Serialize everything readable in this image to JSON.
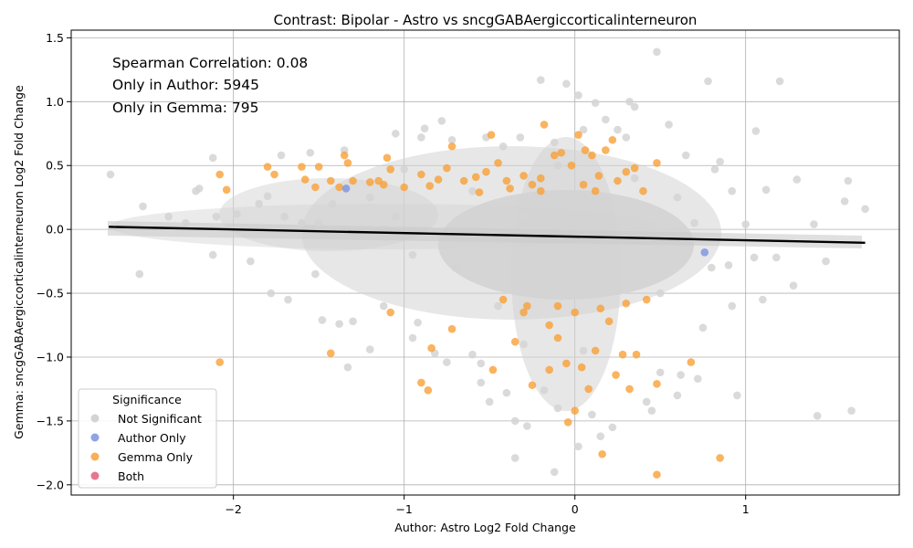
{
  "chart_data": {
    "type": "scatter",
    "title": "Contrast: Bipolar - Astro vs sncgGABAergiccorticalinterneuron",
    "xlabel": "Author: Astro Log2 Fold Change",
    "ylabel": "Gemma: sncgGABAergiccorticalinterneuron Log2 Fold Change",
    "xlim": [
      -2.95,
      1.9
    ],
    "ylim": [
      -2.08,
      1.56
    ],
    "xticks": [
      -2,
      -1,
      0,
      1
    ],
    "yticks": [
      -2.0,
      -1.5,
      -1.0,
      -0.5,
      0.0,
      0.5,
      1.0,
      1.5
    ],
    "xtick_labels": [
      "−2",
      "−1",
      "0",
      "1"
    ],
    "ytick_labels": [
      "−2.0",
      "−1.5",
      "−1.0",
      "−0.5",
      "0.0",
      "0.5",
      "1.0",
      "1.5"
    ],
    "grid": true,
    "annotations": [
      "Spearman Correlation: 0.08",
      "Only in Author: 5945",
      "Only in Gemma: 795"
    ],
    "legend": {
      "title": "Significance",
      "placement": "lower-left",
      "entries": [
        {
          "name": "Not Significant",
          "color": "#d3d3d3"
        },
        {
          "name": "Author Only",
          "color": "#7b93e0"
        },
        {
          "name": "Gemma Only",
          "color": "#f9a037"
        },
        {
          "name": "Both",
          "color": "#e0607a"
        }
      ]
    },
    "regression_line": {
      "x": [
        -2.73,
        1.7
      ],
      "y": [
        0.02,
        -0.105
      ],
      "color": "#000000"
    },
    "series": [
      {
        "name": "Not Significant",
        "color": "#d3d3d3",
        "points": [
          [
            -2.72,
            0.43
          ],
          [
            -2.55,
            -0.35
          ],
          [
            -2.53,
            0.18
          ],
          [
            -2.38,
            0.1
          ],
          [
            -2.28,
            0.05
          ],
          [
            -2.22,
            0.3
          ],
          [
            -2.2,
            0.32
          ],
          [
            -2.12,
            0.56
          ],
          [
            -2.12,
            -0.2
          ],
          [
            -2.1,
            0.1
          ],
          [
            -1.98,
            0.12
          ],
          [
            -1.9,
            -0.25
          ],
          [
            -1.85,
            0.2
          ],
          [
            -1.8,
            0.26
          ],
          [
            -1.78,
            -0.5
          ],
          [
            -1.72,
            0.58
          ],
          [
            -1.68,
            -0.55
          ],
          [
            -1.6,
            0.05
          ],
          [
            -1.55,
            0.6
          ],
          [
            -1.52,
            -0.35
          ],
          [
            -1.48,
            -0.71
          ],
          [
            -1.42,
            0.2
          ],
          [
            -1.38,
            -0.74
          ],
          [
            -1.35,
            0.62
          ],
          [
            -1.33,
            -1.08
          ],
          [
            -1.3,
            -0.72
          ],
          [
            -1.2,
            -0.94
          ],
          [
            -1.12,
            -0.6
          ],
          [
            -1.05,
            0.75
          ],
          [
            -1.0,
            0.47
          ],
          [
            -0.95,
            -0.85
          ],
          [
            -0.92,
            -0.73
          ],
          [
            -0.9,
            0.72
          ],
          [
            -0.88,
            0.79
          ],
          [
            -0.82,
            -0.97
          ],
          [
            -0.78,
            0.85
          ],
          [
            -0.75,
            -1.04
          ],
          [
            -0.72,
            0.7
          ],
          [
            -0.6,
            -0.98
          ],
          [
            -0.55,
            -1.05
          ],
          [
            -0.52,
            0.72
          ],
          [
            -0.55,
            -1.2
          ],
          [
            -0.5,
            -1.35
          ],
          [
            -0.42,
            0.65
          ],
          [
            -0.4,
            -1.28
          ],
          [
            -0.35,
            -1.5
          ],
          [
            -0.35,
            -1.79
          ],
          [
            -0.32,
            0.72
          ],
          [
            -0.28,
            -1.54
          ],
          [
            -0.2,
            1.17
          ],
          [
            -0.18,
            -1.26
          ],
          [
            -0.12,
            -1.9
          ],
          [
            -0.12,
            0.68
          ],
          [
            -0.1,
            -1.4
          ],
          [
            -0.05,
            1.14
          ],
          [
            0.02,
            1.05
          ],
          [
            0.02,
            -1.7
          ],
          [
            0.05,
            0.78
          ],
          [
            0.1,
            -1.45
          ],
          [
            0.12,
            0.99
          ],
          [
            0.15,
            -1.62
          ],
          [
            0.18,
            0.86
          ],
          [
            0.22,
            -1.55
          ],
          [
            0.25,
            0.78
          ],
          [
            0.3,
            0.72
          ],
          [
            0.32,
            1.0
          ],
          [
            0.35,
            0.96
          ],
          [
            0.42,
            -1.35
          ],
          [
            0.45,
            -1.42
          ],
          [
            0.48,
            1.39
          ],
          [
            0.5,
            -1.12
          ],
          [
            0.55,
            0.82
          ],
          [
            0.6,
            -1.3
          ],
          [
            0.62,
            -1.14
          ],
          [
            0.65,
            0.58
          ],
          [
            0.72,
            -1.17
          ],
          [
            0.75,
            -0.77
          ],
          [
            0.78,
            1.16
          ],
          [
            0.82,
            0.47
          ],
          [
            0.85,
            0.53
          ],
          [
            0.9,
            -0.28
          ],
          [
            0.92,
            -0.6
          ],
          [
            0.92,
            0.3
          ],
          [
            0.95,
            -1.3
          ],
          [
            1.0,
            0.04
          ],
          [
            1.05,
            -0.22
          ],
          [
            1.06,
            0.77
          ],
          [
            1.1,
            -0.55
          ],
          [
            1.12,
            0.31
          ],
          [
            1.18,
            -0.22
          ],
          [
            1.2,
            1.16
          ],
          [
            1.28,
            -0.44
          ],
          [
            1.3,
            0.39
          ],
          [
            1.4,
            0.04
          ],
          [
            1.42,
            -1.46
          ],
          [
            1.47,
            -0.25
          ],
          [
            1.58,
            0.22
          ],
          [
            1.6,
            0.38
          ],
          [
            1.62,
            -1.42
          ],
          [
            1.7,
            0.16
          ],
          [
            -0.45,
            -0.6
          ],
          [
            -0.3,
            0.1
          ],
          [
            -0.2,
            -0.4
          ],
          [
            0.1,
            0.2
          ],
          [
            0.2,
            -0.3
          ],
          [
            0.35,
            0.4
          ],
          [
            -0.6,
            0.3
          ],
          [
            -0.7,
            -0.3
          ],
          [
            0.5,
            -0.5
          ],
          [
            0.6,
            0.25
          ],
          [
            -1.05,
            0.1
          ],
          [
            -1.2,
            0.25
          ],
          [
            -0.95,
            -0.2
          ],
          [
            -1.5,
            0.05
          ],
          [
            -1.7,
            0.1
          ],
          [
            0.7,
            0.05
          ],
          [
            0.8,
            -0.3
          ],
          [
            -0.3,
            -0.9
          ],
          [
            0.05,
            -0.95
          ],
          [
            -0.1,
            0.5
          ]
        ]
      },
      {
        "name": "Author Only",
        "color": "#7b93e0",
        "points": [
          [
            0.76,
            -0.18
          ],
          [
            -1.34,
            0.32
          ]
        ]
      },
      {
        "name": "Gemma Only",
        "color": "#f9a037",
        "points": [
          [
            -2.08,
            0.43
          ],
          [
            -2.04,
            0.31
          ],
          [
            -2.08,
            -1.04
          ],
          [
            -1.8,
            0.49
          ],
          [
            -1.76,
            0.43
          ],
          [
            -1.6,
            0.49
          ],
          [
            -1.58,
            0.39
          ],
          [
            -1.52,
            0.33
          ],
          [
            -1.5,
            0.49
          ],
          [
            -1.43,
            0.38
          ],
          [
            -1.43,
            -0.97
          ],
          [
            -1.38,
            0.33
          ],
          [
            -1.35,
            0.58
          ],
          [
            -1.33,
            0.52
          ],
          [
            -1.3,
            0.38
          ],
          [
            -1.2,
            0.37
          ],
          [
            -1.15,
            0.38
          ],
          [
            -1.12,
            0.35
          ],
          [
            -1.1,
            0.56
          ],
          [
            -1.08,
            0.47
          ],
          [
            -1.08,
            -0.65
          ],
          [
            -1.0,
            0.33
          ],
          [
            -0.9,
            0.43
          ],
          [
            -0.9,
            -1.2
          ],
          [
            -0.86,
            -1.26
          ],
          [
            -0.85,
            0.34
          ],
          [
            -0.84,
            -0.93
          ],
          [
            -0.8,
            0.39
          ],
          [
            -0.75,
            0.48
          ],
          [
            -0.72,
            0.65
          ],
          [
            -0.72,
            -0.78
          ],
          [
            -0.65,
            0.38
          ],
          [
            -0.58,
            0.41
          ],
          [
            -0.56,
            0.29
          ],
          [
            -0.52,
            0.45
          ],
          [
            -0.49,
            0.74
          ],
          [
            -0.48,
            -1.1
          ],
          [
            -0.45,
            0.52
          ],
          [
            -0.42,
            -0.55
          ],
          [
            -0.4,
            0.38
          ],
          [
            -0.35,
            -0.88
          ],
          [
            -0.3,
            0.42
          ],
          [
            -0.28,
            -0.6
          ],
          [
            -0.25,
            -1.22
          ],
          [
            -0.2,
            0.4
          ],
          [
            -0.18,
            0.82
          ],
          [
            -0.15,
            -1.1
          ],
          [
            -0.12,
            0.58
          ],
          [
            -0.1,
            -0.85
          ],
          [
            -0.08,
            0.6
          ],
          [
            -0.05,
            -1.05
          ],
          [
            -0.04,
            -1.51
          ],
          [
            -0.02,
            0.5
          ],
          [
            0.0,
            -1.42
          ],
          [
            0.02,
            0.74
          ],
          [
            0.04,
            -1.08
          ],
          [
            0.06,
            0.62
          ],
          [
            0.08,
            -1.25
          ],
          [
            0.1,
            0.58
          ],
          [
            0.12,
            -0.95
          ],
          [
            0.14,
            0.42
          ],
          [
            0.16,
            -1.76
          ],
          [
            0.18,
            0.62
          ],
          [
            0.2,
            -0.72
          ],
          [
            0.22,
            0.7
          ],
          [
            0.24,
            -1.14
          ],
          [
            0.28,
            -0.98
          ],
          [
            0.3,
            0.45
          ],
          [
            0.32,
            -1.25
          ],
          [
            0.35,
            0.48
          ],
          [
            0.36,
            -0.98
          ],
          [
            0.42,
            -0.55
          ],
          [
            0.48,
            0.52
          ],
          [
            0.48,
            -1.21
          ],
          [
            0.48,
            -1.92
          ],
          [
            0.68,
            -1.04
          ],
          [
            0.85,
            -1.79
          ],
          [
            -0.25,
            0.35
          ],
          [
            0.05,
            0.35
          ],
          [
            0.25,
            0.38
          ],
          [
            -0.1,
            -0.6
          ],
          [
            0.15,
            -0.62
          ],
          [
            -0.3,
            -0.65
          ],
          [
            0.0,
            -0.65
          ],
          [
            0.3,
            -0.58
          ],
          [
            -0.2,
            0.3
          ],
          [
            0.12,
            0.3
          ],
          [
            -0.38,
            0.32
          ],
          [
            0.4,
            0.3
          ],
          [
            -0.15,
            -0.75
          ]
        ]
      },
      {
        "name": "Both",
        "color": "#e0607a",
        "points": []
      }
    ]
  }
}
